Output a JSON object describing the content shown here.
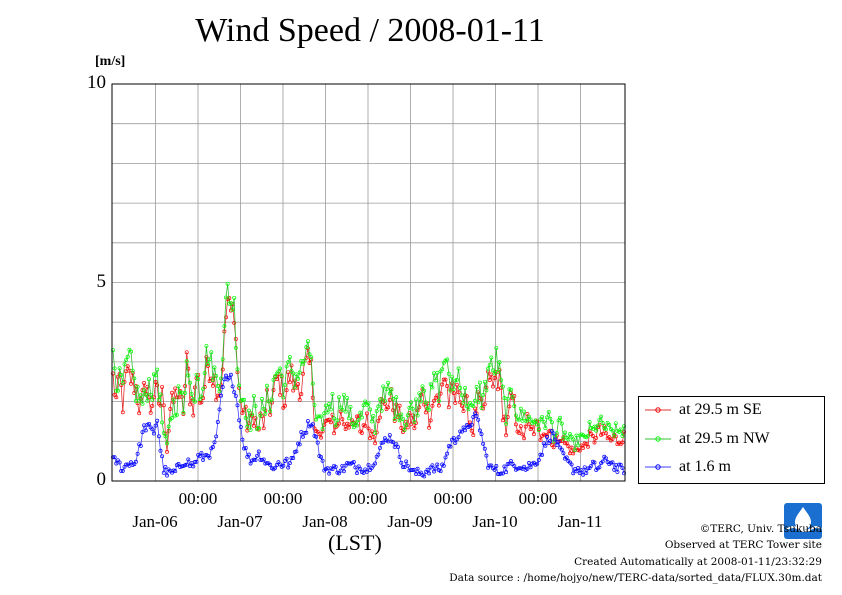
{
  "chart_data": {
    "type": "line",
    "title": "Wind Speed / 2008-01-11",
    "ylabel": "[m/s]",
    "xlabel": "(LST)",
    "ylim": [
      0,
      10
    ],
    "yticks": [
      "0",
      "5",
      "10"
    ],
    "xlim": [
      "2008-01-05 09:00",
      "2008-01-11 23:30"
    ],
    "time_tick_labels": [
      "00:00",
      "00:00",
      "00:00",
      "00:00",
      "00:00"
    ],
    "date_tick_labels": [
      "Jan-06",
      "Jan-07",
      "Jan-08",
      "Jan-09",
      "Jan-10",
      "Jan-11"
    ],
    "grid": true,
    "legend_position": "bottom-right outside",
    "interval_minutes": 30,
    "series": [
      {
        "name": "at 29.5 m SE",
        "color": "#e03030",
        "marker_color": "#ff0000",
        "hourly": [
          2.6,
          2.0,
          2.6,
          1.9,
          2.7,
          2.6,
          2.5,
          2.3,
          1.8,
          2.1,
          2.6,
          1.7,
          2.2,
          2.2,
          1.9,
          2.3,
          0.7,
          1.8,
          2.0,
          2.3,
          2.0,
          1.8,
          3.1,
          2.1,
          1.9,
          2.8,
          2.0,
          2.2,
          3.0,
          2.8,
          2.6,
          2.3,
          2.3,
          3.4,
          4.6,
          4.2,
          4.4,
          2.8,
          1.9,
          1.8,
          1.4,
          1.5,
          1.7,
          1.2,
          1.6,
          1.4,
          2.1,
          1.8,
          2.3,
          2.6,
          2.4,
          2.0,
          2.5,
          2.7,
          2.3,
          2.5,
          2.3,
          2.8,
          3.0,
          2.8,
          1.5,
          1.2,
          1.0,
          1.5,
          1.3,
          1.8,
          1.2,
          1.5,
          1.7,
          1.4,
          1.6,
          1.3,
          1.4,
          1.5,
          1.2,
          1.6,
          1.4,
          1.2,
          1.1,
          1.8,
          1.9,
          1.8,
          2.1,
          2.0,
          1.7,
          1.7,
          1.4,
          1.2,
          1.6,
          1.5,
          1.4,
          1.8,
          2.2,
          2.0,
          1.6,
          1.9,
          2.2,
          1.8,
          2.6,
          2.6,
          1.9,
          2.2,
          2.0,
          2.5,
          1.8,
          1.9,
          1.6,
          1.2,
          1.8,
          2.0,
          1.6,
          2.2,
          2.7,
          2.3,
          2.7,
          2.5,
          1.8,
          1.2,
          1.8,
          2.1,
          1.5,
          1.3,
          1.0,
          1.6,
          1.2,
          1.3,
          1.4,
          1.1,
          1.4,
          1.2,
          1.3,
          0.9,
          1.0,
          1.2,
          1.0,
          0.9,
          0.8,
          0.7,
          0.8,
          0.9,
          0.8,
          1.0,
          1.1,
          1.0,
          1.3,
          1.2,
          1.2,
          1.1,
          1.0,
          1.1,
          1.0,
          1.1,
          1.1
        ]
      },
      {
        "name": "at 29.5 m NW",
        "color": "#30c030",
        "marker_color": "#00ff00",
        "hourly": [
          3.3,
          2.6,
          2.5,
          2.4,
          2.9,
          3.1,
          2.6,
          2.2,
          2.1,
          1.9,
          2.3,
          2.5,
          2.2,
          3.0,
          2.0,
          1.2,
          0.8,
          1.6,
          1.9,
          2.0,
          2.3,
          1.6,
          3.4,
          2.3,
          1.9,
          3.0,
          2.2,
          2.7,
          3.3,
          3.0,
          2.8,
          2.4,
          2.7,
          3.6,
          4.9,
          4.5,
          4.5,
          3.0,
          2.1,
          2.1,
          1.6,
          1.5,
          1.9,
          1.4,
          1.9,
          1.6,
          2.2,
          2.0,
          2.6,
          2.8,
          2.7,
          2.3,
          2.8,
          2.9,
          2.6,
          2.7,
          2.8,
          3.1,
          3.2,
          3.2,
          1.6,
          1.4,
          1.4,
          1.7,
          1.9,
          2.1,
          1.6,
          1.8,
          2.2,
          1.9,
          1.8,
          1.5,
          1.5,
          1.6,
          1.6,
          1.9,
          1.7,
          1.6,
          1.4,
          2.1,
          2.1,
          2.0,
          2.3,
          2.1,
          1.8,
          1.9,
          1.7,
          1.4,
          1.8,
          1.8,
          1.8,
          2.1,
          2.5,
          2.3,
          1.9,
          2.3,
          2.6,
          2.3,
          2.9,
          3.2,
          2.3,
          2.6,
          2.4,
          2.9,
          2.1,
          2.1,
          2.0,
          1.6,
          2.1,
          2.3,
          2.0,
          2.5,
          3.0,
          2.7,
          3.1,
          2.7,
          2.1,
          1.7,
          2.0,
          2.3,
          1.8,
          1.6,
          1.6,
          1.7,
          1.5,
          1.5,
          1.6,
          1.3,
          1.6,
          1.5,
          1.6,
          1.2,
          1.2,
          1.4,
          1.2,
          1.1,
          1.0,
          0.9,
          1.0,
          1.1,
          1.0,
          1.2,
          1.3,
          1.2,
          1.5,
          1.4,
          1.4,
          1.3,
          1.2,
          1.3,
          1.2,
          1.3,
          1.3
        ]
      },
      {
        "name": "at 1.6 m",
        "color": "#4040ff",
        "marker_color": "#0000ff",
        "hourly": [
          0.5,
          0.5,
          0.4,
          0.3,
          0.4,
          0.5,
          0.4,
          0.6,
          0.9,
          1.3,
          1.4,
          1.3,
          1.2,
          1.6,
          0.8,
          0.3,
          0.2,
          0.2,
          0.2,
          0.3,
          0.4,
          0.5,
          0.5,
          0.4,
          0.4,
          0.6,
          0.6,
          0.6,
          0.7,
          0.7,
          0.9,
          1.4,
          2.1,
          2.6,
          2.5,
          2.6,
          2.3,
          1.8,
          1.2,
          0.8,
          0.6,
          0.5,
          0.6,
          0.7,
          0.6,
          0.5,
          0.4,
          0.4,
          0.3,
          0.5,
          0.4,
          0.5,
          0.4,
          0.5,
          0.8,
          1.0,
          1.2,
          1.3,
          1.5,
          1.4,
          1.1,
          0.7,
          0.4,
          0.3,
          0.3,
          0.3,
          0.3,
          0.3,
          0.3,
          0.4,
          0.4,
          0.4,
          0.3,
          0.4,
          0.3,
          0.3,
          0.4,
          0.5,
          0.6,
          0.8,
          1.0,
          1.1,
          1.1,
          1.0,
          0.8,
          0.6,
          0.4,
          0.4,
          0.3,
          0.2,
          0.2,
          0.2,
          0.2,
          0.3,
          0.3,
          0.3,
          0.3,
          0.3,
          0.5,
          0.8,
          1.0,
          1.0,
          1.2,
          1.3,
          1.2,
          1.4,
          1.5,
          1.6,
          1.5,
          1.1,
          0.7,
          0.4,
          0.3,
          0.3,
          0.2,
          0.3,
          0.3,
          0.4,
          0.4,
          0.4,
          0.4,
          0.4,
          0.3,
          0.4,
          0.4,
          0.5,
          0.6,
          0.8,
          1.0,
          1.1,
          1.2,
          1.0,
          0.8,
          0.6,
          0.5,
          0.4,
          0.3,
          0.3,
          0.3,
          0.2,
          0.3,
          0.3,
          0.4,
          0.3,
          0.4,
          0.5,
          0.5,
          0.5,
          0.4,
          0.3,
          0.3,
          0.3
        ]
      }
    ]
  },
  "credits": {
    "copyright": "©TERC, Univ. Tsukuba",
    "observed": "Observed at TERC Tower site",
    "created": "Created Automatically at 2008-01-11/23:32:29",
    "source": "Data source : /home/hojyo/new/TERC-data/sorted_data/FLUX.30m.dat"
  },
  "logo": {
    "icon": "terc-logo-icon",
    "text": "TERC",
    "color": "#1a6fd1"
  }
}
